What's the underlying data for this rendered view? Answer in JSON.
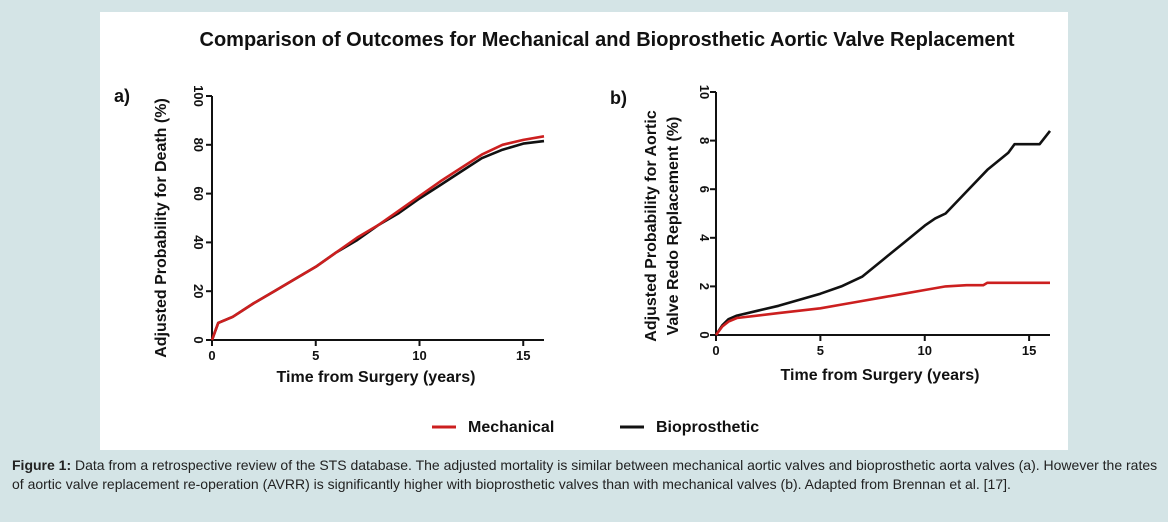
{
  "figure": {
    "title": "Comparison of Outcomes for Mechanical and Bioprosthetic Aortic Valve Replacement",
    "caption_label": "Figure 1:",
    "caption_text": " Data from a retrospective review of the STS database. The adjusted mortality is similar between mechanical aortic valves and bioprosthetic aorta valves (a). However the rates of aortic valve replacement re-operation (AVRR) is significantly higher with bioprosthetic valves than with mechanical valves (b). Adapted from Brennan et al. [17].",
    "legend": [
      {
        "name": "Mechanical",
        "color": "#cc1f1f"
      },
      {
        "name": "Bioprosthetic",
        "color": "#111111"
      }
    ]
  },
  "chart_data": [
    {
      "type": "line",
      "panel_label": "a)",
      "title": "",
      "xlabel": "Time from Surgery (years)",
      "ylabel": "Adjusted Probability for Death (%)",
      "xlim": [
        0,
        16
      ],
      "ylim": [
        0,
        100
      ],
      "xticks": [
        0,
        5,
        10,
        15
      ],
      "yticks": [
        0,
        20,
        40,
        60,
        80,
        100
      ],
      "grid": false,
      "series": [
        {
          "name": "Mechanical",
          "color": "#cc1f1f",
          "x": [
            0,
            0.3,
            1,
            2,
            3,
            4,
            5,
            6,
            7,
            8,
            9,
            10,
            11,
            12,
            13,
            14,
            15,
            16
          ],
          "y": [
            0,
            7,
            9.5,
            15,
            20,
            25,
            30,
            36,
            42,
            47,
            53,
            59,
            65,
            70.5,
            76,
            80,
            82,
            83.5
          ]
        },
        {
          "name": "Bioprosthetic",
          "color": "#111111",
          "x": [
            0,
            0.3,
            1,
            2,
            3,
            4,
            5,
            6,
            7,
            8,
            9,
            10,
            11,
            12,
            13,
            14,
            15,
            16
          ],
          "y": [
            0,
            7,
            9.5,
            15,
            20,
            25,
            30,
            36,
            41,
            47,
            52,
            58,
            63.5,
            69,
            74.5,
            78,
            80.5,
            81.5
          ]
        }
      ]
    },
    {
      "type": "line",
      "panel_label": "b)",
      "title": "",
      "xlabel": "Time from Surgery (years)",
      "ylabel_lines": [
        "Adjusted Probability for Aortic",
        "Valve Redo Replacement (%)"
      ],
      "xlim": [
        0,
        16
      ],
      "ylim": [
        0,
        10
      ],
      "xticks": [
        0,
        5,
        10,
        15
      ],
      "yticks": [
        0,
        2,
        4,
        6,
        8,
        10
      ],
      "grid": false,
      "series": [
        {
          "name": "Mechanical",
          "color": "#cc1f1f",
          "x": [
            0,
            0.3,
            0.6,
            1,
            2,
            3,
            4,
            5,
            6,
            7,
            8,
            9,
            10,
            11,
            12,
            12.8,
            13,
            14,
            15,
            16
          ],
          "y": [
            0,
            0.35,
            0.55,
            0.7,
            0.8,
            0.9,
            1.0,
            1.1,
            1.25,
            1.4,
            1.55,
            1.7,
            1.85,
            2.0,
            2.05,
            2.05,
            2.15,
            2.15,
            2.15,
            2.15
          ]
        },
        {
          "name": "Bioprosthetic",
          "color": "#111111",
          "x": [
            0,
            0.3,
            0.6,
            1,
            2,
            3,
            4,
            5,
            6,
            7,
            8,
            9,
            10,
            10.5,
            11,
            12,
            13,
            14,
            14.3,
            15,
            15.5,
            16
          ],
          "y": [
            0,
            0.4,
            0.65,
            0.8,
            1.0,
            1.2,
            1.45,
            1.7,
            2.0,
            2.4,
            3.1,
            3.8,
            4.5,
            4.8,
            5.0,
            5.9,
            6.8,
            7.5,
            7.85,
            7.85,
            7.85,
            8.4
          ]
        }
      ]
    }
  ]
}
